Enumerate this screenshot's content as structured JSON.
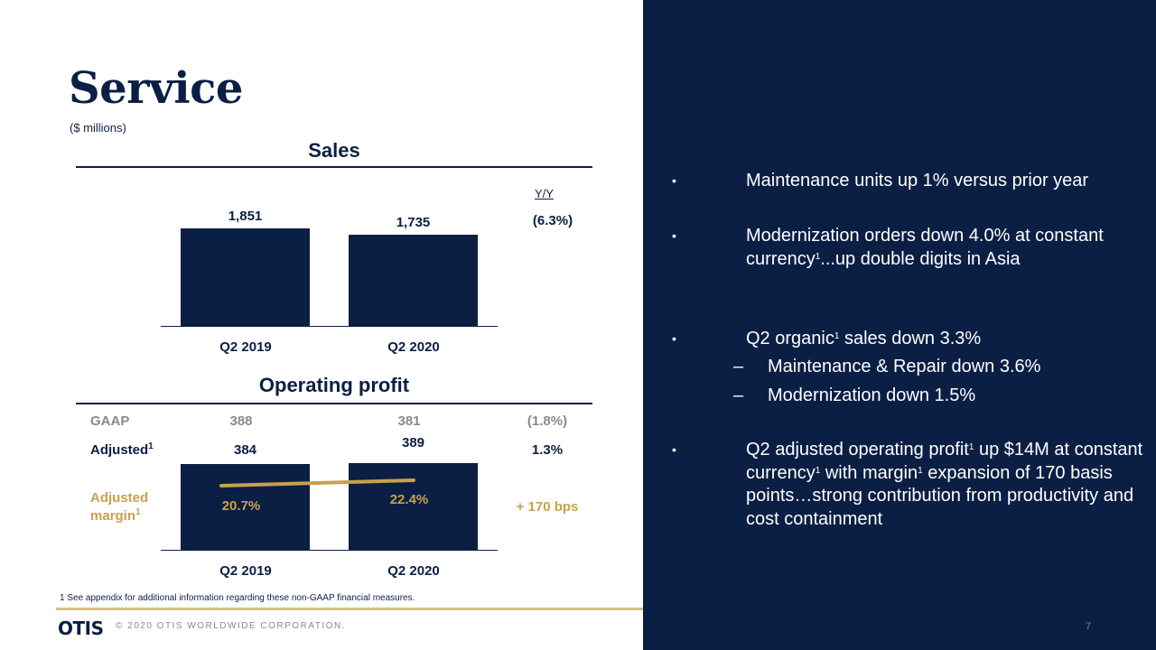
{
  "slide": {
    "title": "Service",
    "subtitle": "($ millions)",
    "page_number": "7",
    "footnote": "1 See appendix for additional information regarding these non-GAAP financial measures.",
    "logo": "OTIS",
    "copyright": "© 2020 OTIS WORLDWIDE CORPORATION.",
    "colors": {
      "navy": "#0b1f44",
      "gold": "#c9a14a",
      "gray": "#8a8a8a"
    }
  },
  "sales": {
    "title": "Sales",
    "yoy_header": "Y/Y",
    "yoy_value": "(6.3%)"
  },
  "op": {
    "title": "Operating profit",
    "gaap_label": "GAAP",
    "gaap_2019": "388",
    "gaap_2020": "381",
    "gaap_yoy": "(1.8%)",
    "adj_label": "Adjusted",
    "adj_yoy": "1.3%",
    "margin_label_1": "Adjusted",
    "margin_label_2": "margin",
    "margin_2019": "20.7%",
    "margin_2020": "22.4%",
    "margin_yoy": "+ 170 bps",
    "sup": "1"
  },
  "chart_data": [
    {
      "type": "bar",
      "title": "Sales",
      "categories": [
        "Q2 2019",
        "Q2 2020"
      ],
      "values": [
        1851,
        1735
      ],
      "value_labels": [
        "1,851",
        "1,735"
      ],
      "ylim": [
        0,
        2000
      ]
    },
    {
      "type": "bar",
      "title": "Operating profit",
      "categories": [
        "Q2 2019",
        "Q2 2020"
      ],
      "values": [
        384,
        389
      ],
      "value_labels": [
        "384",
        "389"
      ],
      "ylim": [
        0,
        400
      ],
      "margin_line": {
        "values": [
          20.7,
          22.4
        ],
        "color": "#c9a14a"
      }
    }
  ],
  "bullets": [
    {
      "text": "Maintenance units up 1% versus prior year"
    },
    {
      "text_html": "Modernization orders down 4.0% at constant currency<sup>1</sup>...up double digits in Asia"
    },
    {
      "text_html": "Q2 organic<sup>1</sup> sales down 3.3%"
    },
    {
      "sub1": "Maintenance & Repair down 3.6%",
      "sub2": "Modernization down 1.5%"
    },
    {
      "text_html": "Q2 adjusted operating profit<sup>1</sup> up $14M at constant currency<sup>1</sup> with margin<sup>1</sup> expansion of 170 basis points…strong contribution from productivity and cost containment"
    }
  ],
  "bullet_char": "•",
  "dash_char": "–"
}
